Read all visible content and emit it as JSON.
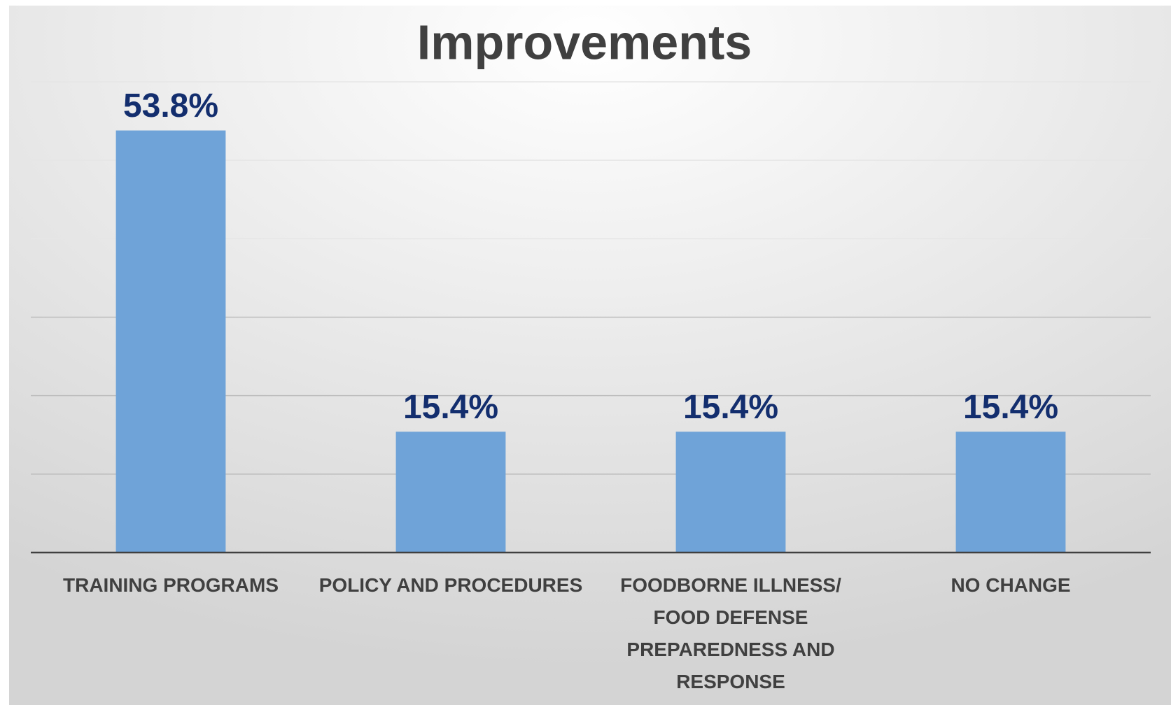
{
  "chart_data": {
    "type": "bar",
    "title": "Improvements",
    "categories": [
      "TRAINING PROGRAMS",
      "POLICY AND PROCEDURES",
      "FOODBORNE ILLNESS/ FOOD DEFENSE PREPAREDNESS AND RESPONSE",
      "NO CHANGE"
    ],
    "values": [
      53.8,
      15.4,
      15.4,
      15.4
    ],
    "value_labels": [
      "53.8%",
      "15.4%",
      "15.4%",
      "15.4%"
    ],
    "color": "#6fa3d8",
    "ylim": [
      0,
      60
    ],
    "yticks": [
      0,
      10,
      20,
      30,
      40,
      50,
      60
    ],
    "grid": true
  }
}
